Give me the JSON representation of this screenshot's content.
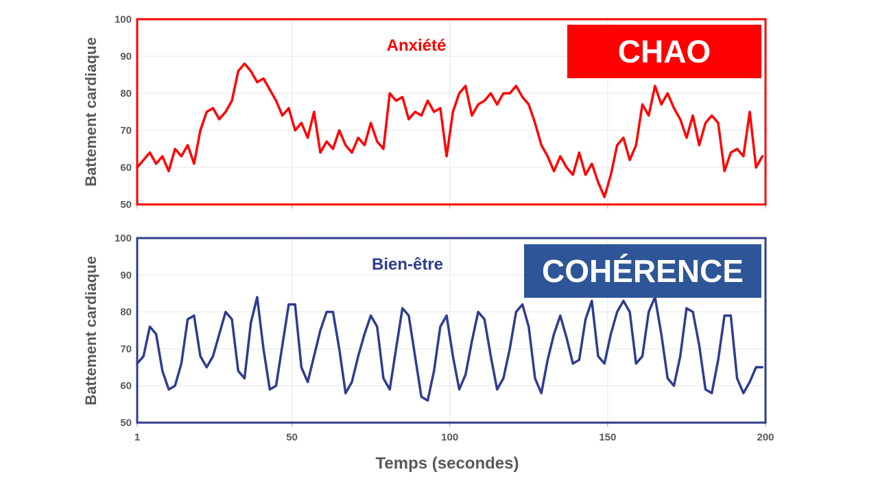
{
  "xlabel": "Temps (secondes)",
  "chart_data": [
    {
      "type": "line",
      "ylabel": "Battement cardiaque",
      "ylim": [
        50,
        100
      ],
      "xlim": [
        1,
        200
      ],
      "yticks": [
        50,
        60,
        70,
        80,
        90,
        100
      ],
      "xticks": [
        1,
        50,
        100,
        150,
        200
      ],
      "grid": true,
      "color": "#ff0000",
      "series": [
        {
          "name": "Anxiété",
          "x": [
            1,
            3,
            5,
            7,
            9,
            11,
            13,
            15,
            17,
            19,
            21,
            23,
            25,
            27,
            29,
            31,
            33,
            35,
            37,
            39,
            41,
            43,
            45,
            47,
            49,
            51,
            53,
            55,
            57,
            59,
            61,
            63,
            65,
            67,
            69,
            71,
            73,
            75,
            77,
            79,
            81,
            83,
            85,
            87,
            89,
            91,
            93,
            95,
            97,
            99,
            101,
            103,
            105,
            107,
            109,
            111,
            113,
            115,
            117,
            119,
            121,
            123,
            125,
            127,
            129,
            131,
            133,
            135,
            137,
            139,
            141,
            143,
            145,
            147,
            149,
            151,
            153,
            155,
            157,
            159,
            161,
            163,
            165,
            167,
            169,
            171,
            173,
            175,
            177,
            179,
            181,
            183,
            185,
            187,
            189,
            191,
            193,
            195,
            197,
            199
          ],
          "values": [
            60,
            62,
            64,
            61,
            63,
            59,
            65,
            63,
            66,
            61,
            70,
            75,
            76,
            73,
            75,
            78,
            86,
            88,
            86,
            83,
            84,
            81,
            78,
            74,
            76,
            70,
            72,
            68,
            75,
            64,
            67,
            65,
            70,
            66,
            64,
            68,
            66,
            72,
            67,
            65,
            80,
            78,
            79,
            73,
            75,
            74,
            78,
            75,
            76,
            63,
            75,
            80,
            82,
            74,
            77,
            78,
            80,
            77,
            80,
            80,
            82,
            79,
            77,
            72,
            66,
            63,
            59,
            63,
            60,
            58,
            64,
            58,
            61,
            56,
            52,
            58,
            66,
            68,
            62,
            66,
            77,
            74,
            82,
            77,
            80,
            76,
            73,
            68,
            74,
            66,
            72,
            74,
            72,
            59,
            64,
            65,
            63,
            75,
            60,
            63
          ]
        }
      ],
      "badge": {
        "text": "CHAO",
        "color": "#ff0000"
      }
    },
    {
      "type": "line",
      "ylabel": "Battement cardiaque",
      "ylim": [
        50,
        100
      ],
      "xlim": [
        1,
        200
      ],
      "yticks": [
        50,
        60,
        70,
        80,
        90,
        100
      ],
      "xticks": [
        1,
        50,
        100,
        150,
        200
      ],
      "grid": true,
      "color": "#2f3c8f",
      "series": [
        {
          "name": "Bien-être",
          "x": [
            1,
            3,
            5,
            7,
            9,
            11,
            13,
            15,
            17,
            19,
            21,
            23,
            25,
            27,
            29,
            31,
            33,
            35,
            37,
            39,
            41,
            43,
            45,
            47,
            49,
            51,
            53,
            55,
            57,
            59,
            61,
            63,
            65,
            67,
            69,
            71,
            73,
            75,
            77,
            79,
            81,
            83,
            85,
            87,
            89,
            91,
            93,
            95,
            97,
            99,
            101,
            103,
            105,
            107,
            109,
            111,
            113,
            115,
            117,
            119,
            121,
            123,
            125,
            127,
            129,
            131,
            133,
            135,
            137,
            139,
            141,
            143,
            145,
            147,
            149,
            151,
            153,
            155,
            157,
            159,
            161,
            163,
            165,
            167,
            169,
            171,
            173,
            175,
            177,
            179,
            181,
            183,
            185,
            187,
            189,
            191,
            193,
            195,
            197,
            199
          ],
          "values": [
            66,
            68,
            76,
            74,
            64,
            59,
            60,
            66,
            78,
            79,
            68,
            65,
            68,
            74,
            80,
            78,
            64,
            62,
            77,
            84,
            70,
            59,
            60,
            71,
            82,
            82,
            65,
            61,
            68,
            75,
            80,
            80,
            70,
            58,
            61,
            68,
            74,
            79,
            76,
            62,
            59,
            70,
            81,
            79,
            68,
            57,
            56,
            64,
            76,
            79,
            68,
            59,
            63,
            72,
            80,
            78,
            68,
            59,
            62,
            70,
            80,
            82,
            76,
            62,
            58,
            67,
            74,
            79,
            73,
            66,
            67,
            78,
            83,
            68,
            66,
            74,
            80,
            83,
            80,
            66,
            68,
            80,
            84,
            74,
            62,
            60,
            68,
            81,
            80,
            71,
            59,
            58,
            67,
            79,
            79,
            62,
            58,
            61,
            65,
            65
          ]
        }
      ],
      "badge": {
        "text": "COHÉRENCE",
        "color": "#2e5597"
      }
    }
  ]
}
